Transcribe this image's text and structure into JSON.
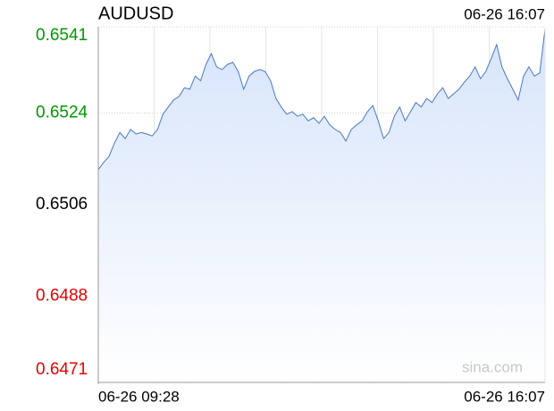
{
  "chart_data": {
    "type": "area",
    "title": "AUDUSD",
    "time": "06-26 16:07",
    "watermark": "sina.com",
    "color": "#4a78c2",
    "fill_top": "#d6e4fa",
    "fill_bottom": "#ffffff",
    "grid": true,
    "vertical_grid_divisions": 8,
    "ylim": [
      0.6471,
      0.6541
    ],
    "yticks": [
      0.6471,
      0.6488,
      0.6506,
      0.6524,
      0.6541
    ],
    "ytick_colors": [
      "#e60000",
      "#e60000",
      "#000000",
      "#009900",
      "#009900"
    ],
    "categories": [
      "06-26 09:28",
      null,
      null,
      null,
      null,
      null,
      null,
      null,
      null,
      null,
      null,
      null,
      null,
      null,
      null,
      null,
      null,
      null,
      null,
      null,
      null,
      null,
      null,
      null,
      null,
      null,
      null,
      null,
      null,
      null,
      null,
      null,
      null,
      null,
      null,
      null,
      null,
      null,
      null,
      null,
      null,
      null,
      null,
      null,
      null,
      null,
      null,
      null,
      null,
      null,
      null,
      null,
      null,
      null,
      null,
      null,
      null,
      null,
      null,
      null,
      null,
      null,
      null,
      null,
      null,
      null,
      null,
      null,
      null,
      null,
      null,
      null,
      null,
      null,
      null,
      null,
      null,
      null,
      null,
      null,
      null,
      null,
      null,
      "06-26 16:07"
    ],
    "values": [
      0.65129,
      0.65143,
      0.65155,
      0.65181,
      0.65202,
      0.6519,
      0.65208,
      0.65199,
      0.65202,
      0.65199,
      0.65195,
      0.65208,
      0.65238,
      0.65252,
      0.65266,
      0.65273,
      0.6529,
      0.65287,
      0.65313,
      0.65304,
      0.65336,
      0.65357,
      0.65331,
      0.65326,
      0.65336,
      0.6534,
      0.65322,
      0.65287,
      0.65313,
      0.65322,
      0.65326,
      0.65322,
      0.65304,
      0.65269,
      0.65252,
      0.65238,
      0.65243,
      0.65234,
      0.65238,
      0.65225,
      0.65231,
      0.6522,
      0.65234,
      0.65217,
      0.65208,
      0.65202,
      0.65185,
      0.65208,
      0.65217,
      0.65225,
      0.65243,
      0.65255,
      0.65225,
      0.6519,
      0.65202,
      0.65234,
      0.65252,
      0.65225,
      0.65243,
      0.65261,
      0.65252,
      0.65269,
      0.65261,
      0.65278,
      0.6529,
      0.65269,
      0.65278,
      0.65287,
      0.65301,
      0.65313,
      0.65331,
      0.65308,
      0.65322,
      0.65348,
      0.65375,
      0.65331,
      0.65308,
      0.65287,
      0.65266,
      0.65313,
      0.65331,
      0.65313,
      0.65319,
      0.65406
    ]
  }
}
